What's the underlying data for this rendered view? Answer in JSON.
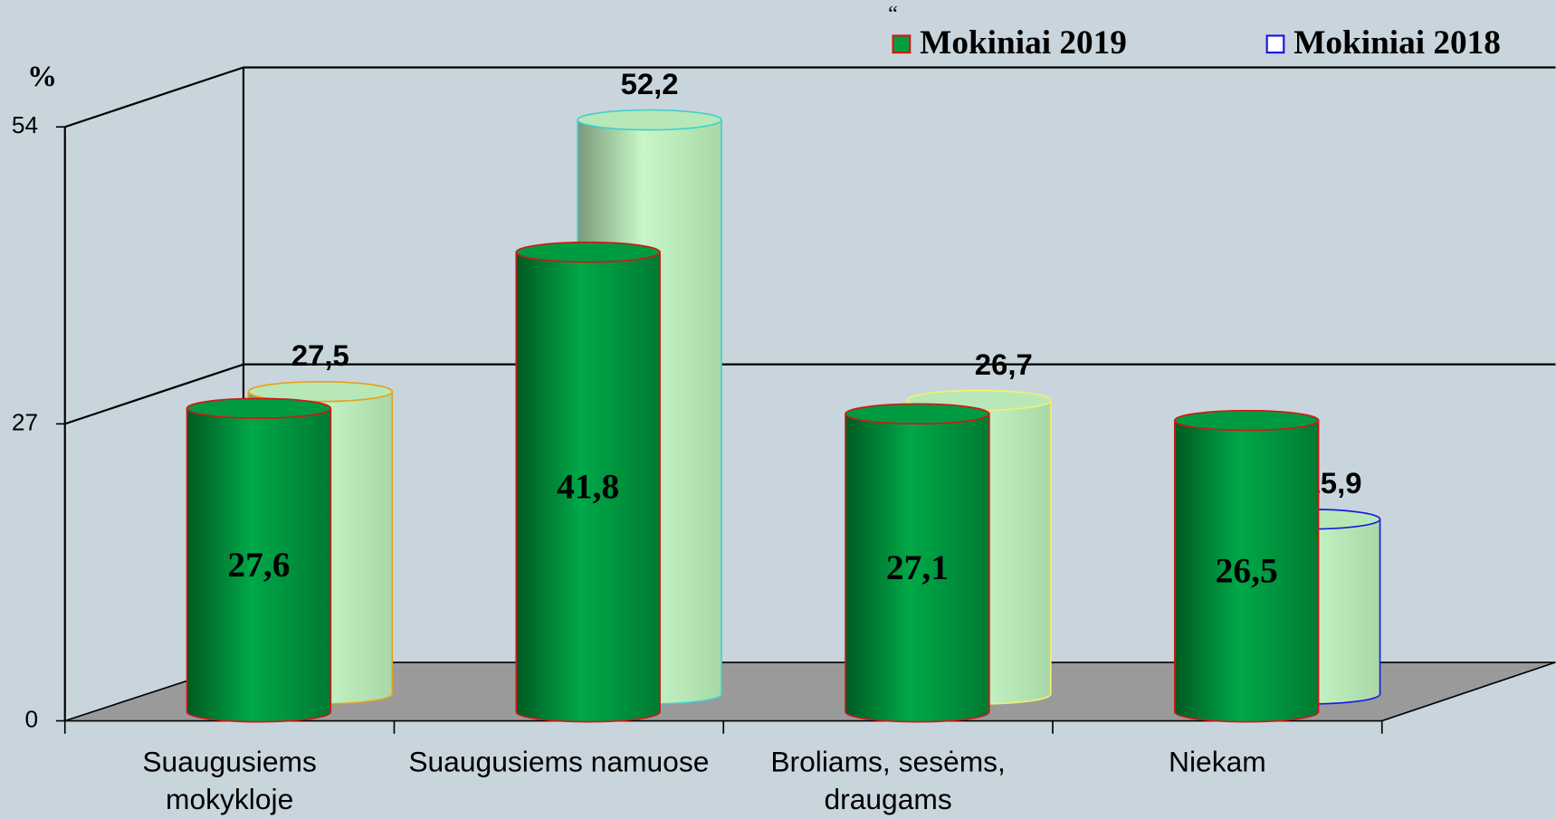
{
  "chart_data": {
    "type": "bar3d",
    "annotation": "“",
    "y_label": "%",
    "categories": [
      "Suaugusiems\nmokykloje",
      "Suaugusiems namuose",
      "Broliams, sesėms,\ndraugams",
      "Niekam"
    ],
    "series": [
      {
        "name": "Mokiniai 2019",
        "color": "#00a040",
        "edge_color": "#d01818",
        "values": [
          27.6,
          41.8,
          27.1,
          26.5
        ],
        "value_labels": [
          "27,6",
          "41,8",
          "27,1",
          "26,5"
        ]
      },
      {
        "name": "Mokiniai 2018",
        "color": "#c8f5c8",
        "edge_color": "#1a1ae0",
        "bar_edge_colors": [
          "#e8a020",
          "#40d0d0",
          "#f0f070",
          "#1a1ae0"
        ],
        "values": [
          27.5,
          52.2,
          26.7,
          15.9
        ],
        "value_labels": [
          "27,5",
          "52,2",
          "26,7",
          "15,9"
        ]
      }
    ],
    "ylim": [
      0,
      54
    ],
    "yticks": [
      0,
      27,
      54
    ],
    "grid": true
  }
}
